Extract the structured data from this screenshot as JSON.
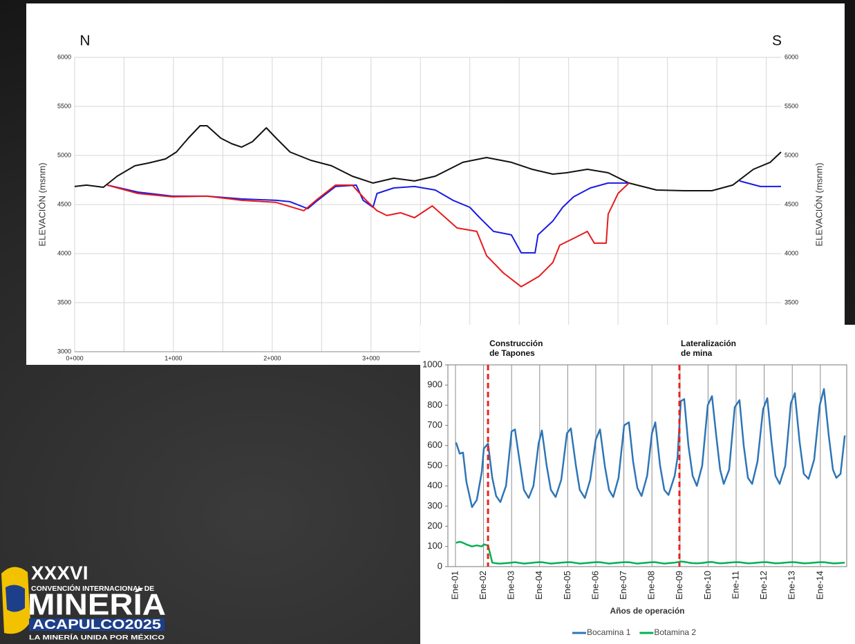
{
  "chart_data": [
    {
      "type": "line",
      "left_label": "N",
      "right_label": "S",
      "ylabel": "ELEVACIÓN (msnm)",
      "xlim": [
        0,
        7.15
      ],
      "ylim": [
        3000,
        6000
      ],
      "xticks": [
        {
          "value": 0,
          "label": "0+000"
        },
        {
          "value": 1,
          "label": "1+000"
        },
        {
          "value": 2,
          "label": "2+000"
        },
        {
          "value": 3,
          "label": "3+000"
        }
      ],
      "xminorticks": [
        0.5,
        1.5,
        2.5,
        3.5,
        4,
        4.5,
        5,
        5.5,
        6,
        6.5,
        7
      ],
      "yticks": [
        3000,
        3500,
        4000,
        4500,
        5000,
        5500,
        6000
      ],
      "grid": true,
      "series": [
        {
          "color": "#111111",
          "x": [
            0,
            0.12,
            0.29,
            0.43,
            0.61,
            0.75,
            0.92,
            1.03,
            1.15,
            1.27,
            1.34,
            1.48,
            1.59,
            1.69,
            1.8,
            1.94,
            2.04,
            2.18,
            2.39,
            2.6,
            2.81,
            3.02,
            3.23,
            3.44,
            3.65,
            3.93,
            4.17,
            4.42,
            4.63,
            4.84,
            4.98,
            5.19,
            5.4,
            5.61,
            5.89,
            6.17,
            6.45,
            6.66,
            6.87,
            7.04,
            7.15
          ],
          "values": [
            4684,
            4698,
            4676,
            4789,
            4895,
            4923,
            4965,
            5035,
            5176,
            5303,
            5303,
            5176,
            5120,
            5085,
            5141,
            5282,
            5176,
            5035,
            4951,
            4895,
            4789,
            4719,
            4768,
            4740,
            4789,
            4930,
            4979,
            4930,
            4859,
            4810,
            4824,
            4859,
            4824,
            4719,
            4648,
            4641,
            4641,
            4698,
            4859,
            4930,
            5035
          ]
        },
        {
          "color": "#1a1ae6",
          "x": [
            0.33,
            0.64,
            0.99,
            1.34,
            1.69,
            2.04,
            2.18,
            2.36,
            2.46,
            2.64,
            2.85,
            2.92,
            3.02,
            3.06,
            3.23,
            3.44,
            3.65,
            3.83,
            4.0,
            4.1,
            4.24,
            4.42,
            4.52,
            4.66,
            4.69,
            4.84,
            4.94,
            5.05,
            5.22,
            5.4,
            5.61,
            null,
            6.73,
            6.94,
            7.15
          ],
          "values": [
            4698,
            4627,
            4585,
            4585,
            4557,
            4543,
            4529,
            4458,
            4543,
            4684,
            4698,
            4543,
            4472,
            4613,
            4669,
            4684,
            4648,
            4543,
            4472,
            4366,
            4226,
            4191,
            4008,
            4008,
            4191,
            4332,
            4472,
            4578,
            4669,
            4719,
            4719,
            null,
            4740,
            4684,
            4684
          ]
        },
        {
          "color": "#e61a1a",
          "x": [
            0.33,
            0.64,
            0.99,
            1.34,
            1.69,
            2.04,
            2.32,
            2.46,
            2.64,
            2.81,
            2.95,
            3.06,
            3.16,
            3.3,
            3.44,
            3.62,
            3.87,
            4.07,
            4.17,
            4.34,
            4.52,
            4.7,
            4.84,
            4.91,
            5.05,
            5.19,
            5.26,
            5.38,
            5.4,
            5.5,
            5.61
          ],
          "values": [
            4698,
            4613,
            4578,
            4585,
            4543,
            4522,
            4437,
            4557,
            4698,
            4698,
            4543,
            4437,
            4388,
            4416,
            4366,
            4486,
            4261,
            4226,
            3979,
            3803,
            3663,
            3768,
            3909,
            4085,
            4155,
            4226,
            4106,
            4106,
            4402,
            4613,
            4719
          ]
        }
      ]
    },
    {
      "type": "line",
      "xlabel": "Años de operación",
      "xlim": [
        0.73,
        14.94
      ],
      "ylim": [
        0,
        1000
      ],
      "yticks": [
        0,
        100,
        200,
        300,
        400,
        500,
        600,
        700,
        800,
        900,
        1000
      ],
      "xticks": [
        {
          "value": 1,
          "label": "Ene-01"
        },
        {
          "value": 2,
          "label": "Ene-02"
        },
        {
          "value": 3,
          "label": "Ene-03"
        },
        {
          "value": 4,
          "label": "Ene-04"
        },
        {
          "value": 5,
          "label": "Ene-05"
        },
        {
          "value": 6,
          "label": "Ene-06"
        },
        {
          "value": 7,
          "label": "Ene-07"
        },
        {
          "value": 8,
          "label": "Ene-08"
        },
        {
          "value": 9,
          "label": "Ene-09"
        },
        {
          "value": 10,
          "label": "Ene-10"
        },
        {
          "value": 11,
          "label": "Ene-11"
        },
        {
          "value": 12,
          "label": "Ene-12"
        },
        {
          "value": 13,
          "label": "Ene-13"
        },
        {
          "value": 14,
          "label": "Ene-14"
        }
      ],
      "grid": true,
      "markers": [
        {
          "x": 2.16,
          "text": [
            "Construcción",
            "de Tapones"
          ],
          "color": "#e8221c"
        },
        {
          "x": 8.98,
          "text": [
            "Lateralización",
            "de mina"
          ],
          "color": "#e8221c"
        }
      ],
      "legend": "bottom",
      "x": [
        1.02,
        1.15,
        1.27,
        1.39,
        1.59,
        1.76,
        1.94,
        2.01,
        2.16,
        2.31,
        2.45,
        2.6,
        2.8,
        3.0,
        3.12,
        3.29,
        3.44,
        3.61,
        3.78,
        3.96,
        4.08,
        4.25,
        4.4,
        4.57,
        4.77,
        4.97,
        5.11,
        5.29,
        5.43,
        5.61,
        5.8,
        6.0,
        6.15,
        6.32,
        6.47,
        6.62,
        6.81,
        7.01,
        7.18,
        7.33,
        7.48,
        7.63,
        7.83,
        8.0,
        8.12,
        8.29,
        8.44,
        8.59,
        8.81,
        8.91,
        9.03,
        9.15,
        9.3,
        9.45,
        9.6,
        9.79,
        9.99,
        10.14,
        10.29,
        10.43,
        10.56,
        10.75,
        10.95,
        11.12,
        11.27,
        11.42,
        11.57,
        11.76,
        11.96,
        12.11,
        12.26,
        12.4,
        12.55,
        12.75,
        12.95,
        13.09,
        13.26,
        13.41,
        13.58,
        13.78,
        13.98,
        14.13,
        14.3,
        14.45,
        14.57,
        14.72,
        14.87
      ],
      "series": [
        {
          "name": "Bocamina 1",
          "color": "#2e75b6",
          "values": [
            615,
            560,
            565,
            420,
            295,
            330,
            470,
            585,
            610,
            440,
            350,
            320,
            400,
            670,
            680,
            520,
            380,
            340,
            400,
            610,
            675,
            500,
            380,
            345,
            430,
            660,
            685,
            500,
            380,
            340,
            430,
            630,
            680,
            500,
            380,
            345,
            440,
            700,
            715,
            520,
            390,
            350,
            450,
            660,
            715,
            500,
            380,
            355,
            450,
            540,
            820,
            830,
            600,
            450,
            400,
            500,
            800,
            845,
            650,
            480,
            410,
            480,
            790,
            825,
            600,
            440,
            410,
            520,
            780,
            835,
            620,
            450,
            410,
            500,
            810,
            860,
            620,
            460,
            435,
            530,
            800,
            880,
            650,
            480,
            440,
            460,
            650
          ]
        },
        {
          "name": "Botamina 2",
          "color": "#00b050",
          "values": [
            118,
            123,
            118,
            110,
            100,
            105,
            100,
            110,
            105,
            20,
            16,
            15,
            17,
            20,
            22,
            18,
            15,
            17,
            20,
            22,
            22,
            18,
            15,
            17,
            20,
            22,
            22,
            18,
            15,
            17,
            20,
            22,
            22,
            18,
            15,
            17,
            20,
            22,
            22,
            18,
            15,
            17,
            20,
            22,
            22,
            18,
            15,
            17,
            20,
            22,
            25,
            24,
            20,
            17,
            16,
            18,
            22,
            23,
            19,
            16,
            17,
            20,
            22,
            22,
            19,
            16,
            17,
            20,
            22,
            22,
            19,
            16,
            17,
            20,
            22,
            22,
            19,
            16,
            17,
            20,
            22,
            22,
            19,
            16,
            16,
            18,
            20
          ]
        }
      ]
    }
  ],
  "logo": {
    "edition": "XXXVI",
    "line1": "CONVENCIÓN INTERNACIONAL DE",
    "name": "MINERÍA",
    "place": "ACAPULCO2025",
    "motto": "LA MINERÍA UNIDA POR MÉXICO"
  }
}
